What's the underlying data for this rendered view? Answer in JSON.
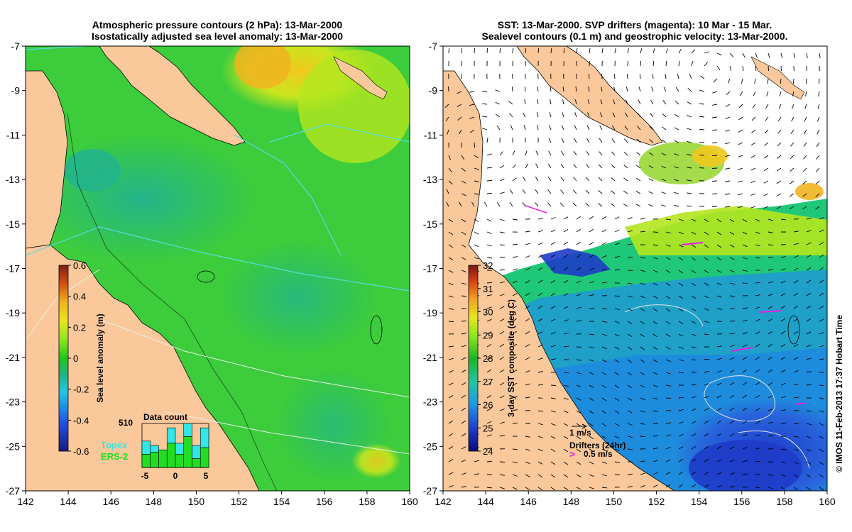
{
  "left_map": {
    "title_line1": "Atmospheric pressure contours (2 hPa): 13-Mar-2000",
    "title_line2": "Isostatically adjusted sea level anomaly: 13-Mar-2000",
    "colorbar": {
      "label": "Sea level anomaly (m)",
      "ticks": [
        "0.6",
        "0.4",
        "0.2",
        "0",
        "-0.2",
        "-0.4",
        "-0.6"
      ],
      "range": [
        -0.6,
        0.6
      ]
    },
    "inset": {
      "title": "Data count",
      "max_count": "510",
      "x_ticks": [
        "-5",
        "0",
        "5"
      ],
      "legend": [
        {
          "label": "Topex",
          "color": "#33e6e6"
        },
        {
          "label": "ERS-2",
          "color": "#22dd22"
        }
      ],
      "bars": [
        {
          "topex": 0.6,
          "ers": 0.3
        },
        {
          "topex": 0.5,
          "ers": 0.35
        },
        {
          "topex": 0.4,
          "ers": 0.4
        },
        {
          "topex": 0.9,
          "ers": 0.55
        },
        {
          "topex": 0.55,
          "ers": 0.3
        },
        {
          "topex": 1.0,
          "ers": 0.7
        },
        {
          "topex": 0.5,
          "ers": 0.2
        },
        {
          "topex": 0.9,
          "ers": 0.45
        }
      ]
    }
  },
  "right_map": {
    "title_line1": "SST: 13-Mar-2000. SVP drifters (magenta): 10 Mar - 15 Mar.",
    "title_line2": "Sealevel contours (0.1 m) and geostrophic velocity: 13-Mar-2000.",
    "colorbar": {
      "label": "3-day SST composite (deg C)",
      "ticks": [
        "32",
        "31",
        "30",
        "29",
        "28",
        "27",
        "26",
        "25",
        "24"
      ],
      "range": [
        24,
        32
      ]
    },
    "velocity_scale_label": "1 m/s",
    "drifters_label": "Drifters (24hr)",
    "drifter_speed_label": "0.5 m/s"
  },
  "axes": {
    "x_ticks": [
      "142",
      "144",
      "146",
      "148",
      "150",
      "152",
      "154",
      "156",
      "158",
      "160"
    ],
    "y_ticks": [
      "-7",
      "-9",
      "-11",
      "-13",
      "-15",
      "-17",
      "-19",
      "-21",
      "-23",
      "-25",
      "-27"
    ],
    "lon_range": [
      142,
      160
    ],
    "lat_range": [
      -27,
      -7
    ]
  },
  "credit": "© IMOS 11-Feb-2013 17:37 Hobart Time",
  "colors": {
    "land": "#fac89a",
    "ocean_green": "#3ccc3c",
    "ocean_teal": "#2cb884",
    "ocean_yellow": "#b8e61e",
    "sst_blue": "#1e5ae6",
    "drifter": "#e61ee6"
  }
}
